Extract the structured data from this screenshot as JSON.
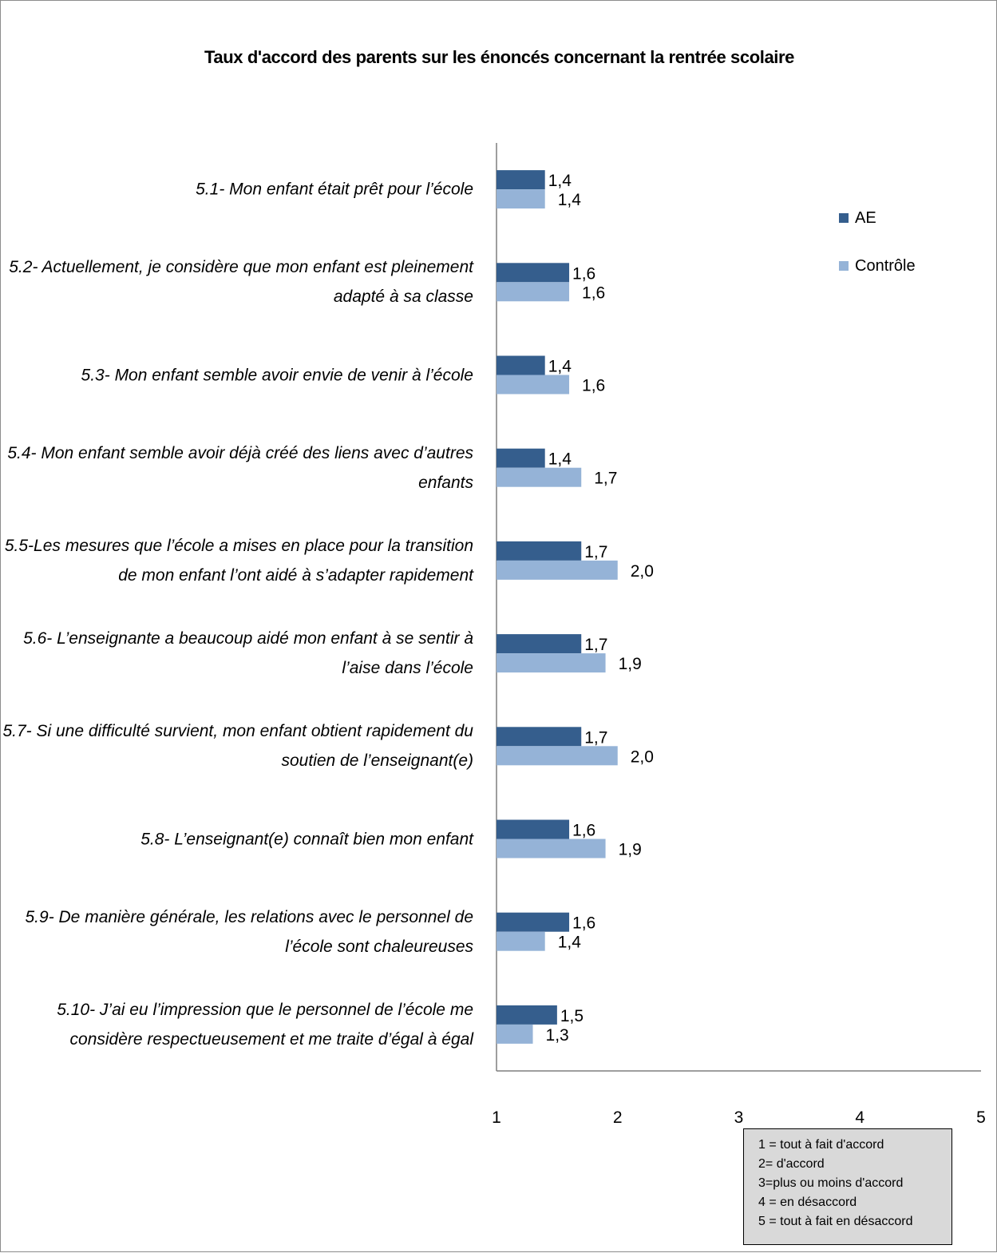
{
  "chart_data": {
    "type": "bar",
    "orientation": "horizontal",
    "title": "Taux d'accord des parents sur les énoncés concernant la rentrée scolaire",
    "categories": [
      "5.1- Mon enfant était prêt pour l’école",
      "5.2- Actuellement,  je considère que mon enfant est pleinement adapté à sa classe",
      "5.3- Mon enfant semble avoir envie de venir à l’école",
      "5.4- Mon enfant semble avoir déjà  créé des liens avec d’autres enfants",
      "5.5-Les mesures  que l’école a mises en place pour la transition de mon enfant l’ont aidé à s’adapter rapidement",
      "5.6- L’enseignante a beaucoup aidé mon enfant à se sentir à l’aise dans l’école",
      "5.7- Si une difficulté survient, mon enfant obtient rapidement du soutien de l’enseignant(e)",
      "5.8- L’enseignant(e) connaît bien mon enfant",
      "5.9- De manière générale, les relations  avec le personnel de l’école sont chaleureuses",
      "5.10- J’ai eu l’impression  que le personnel de l’école me considère respectueusement  et me traite d’égal à égal"
    ],
    "series": [
      {
        "name": "AE",
        "color": "#355E8D",
        "values": [
          1.4,
          1.6,
          1.4,
          1.4,
          1.7,
          1.7,
          1.7,
          1.6,
          1.6,
          1.5
        ],
        "labels": [
          "1,4",
          "1,6",
          "1,4",
          "1,4",
          "1,7",
          "1,7",
          "1,7",
          "1,6",
          "1,6",
          "1,5"
        ]
      },
      {
        "name": "Contrôle",
        "color": "#95B3D7",
        "values": [
          1.4,
          1.6,
          1.6,
          1.7,
          2.0,
          1.9,
          2.0,
          1.9,
          1.4,
          1.3
        ],
        "labels": [
          "1,4",
          "1,6",
          "1,6",
          "1,7",
          "2,0",
          "1,9",
          "2,0",
          "1,9",
          "1,4",
          "1,3"
        ]
      }
    ],
    "xlim": [
      1,
      5
    ],
    "xticks": [
      "1",
      "2",
      "3",
      "4",
      "5"
    ],
    "grid": false,
    "legend_position": "right"
  },
  "scale_note": [
    "1 = tout à fait d'accord",
    "2= d'accord",
    "3=plus ou moins d'accord",
    "4 = en désaccord",
    "5 = tout à fait en désaccord"
  ]
}
